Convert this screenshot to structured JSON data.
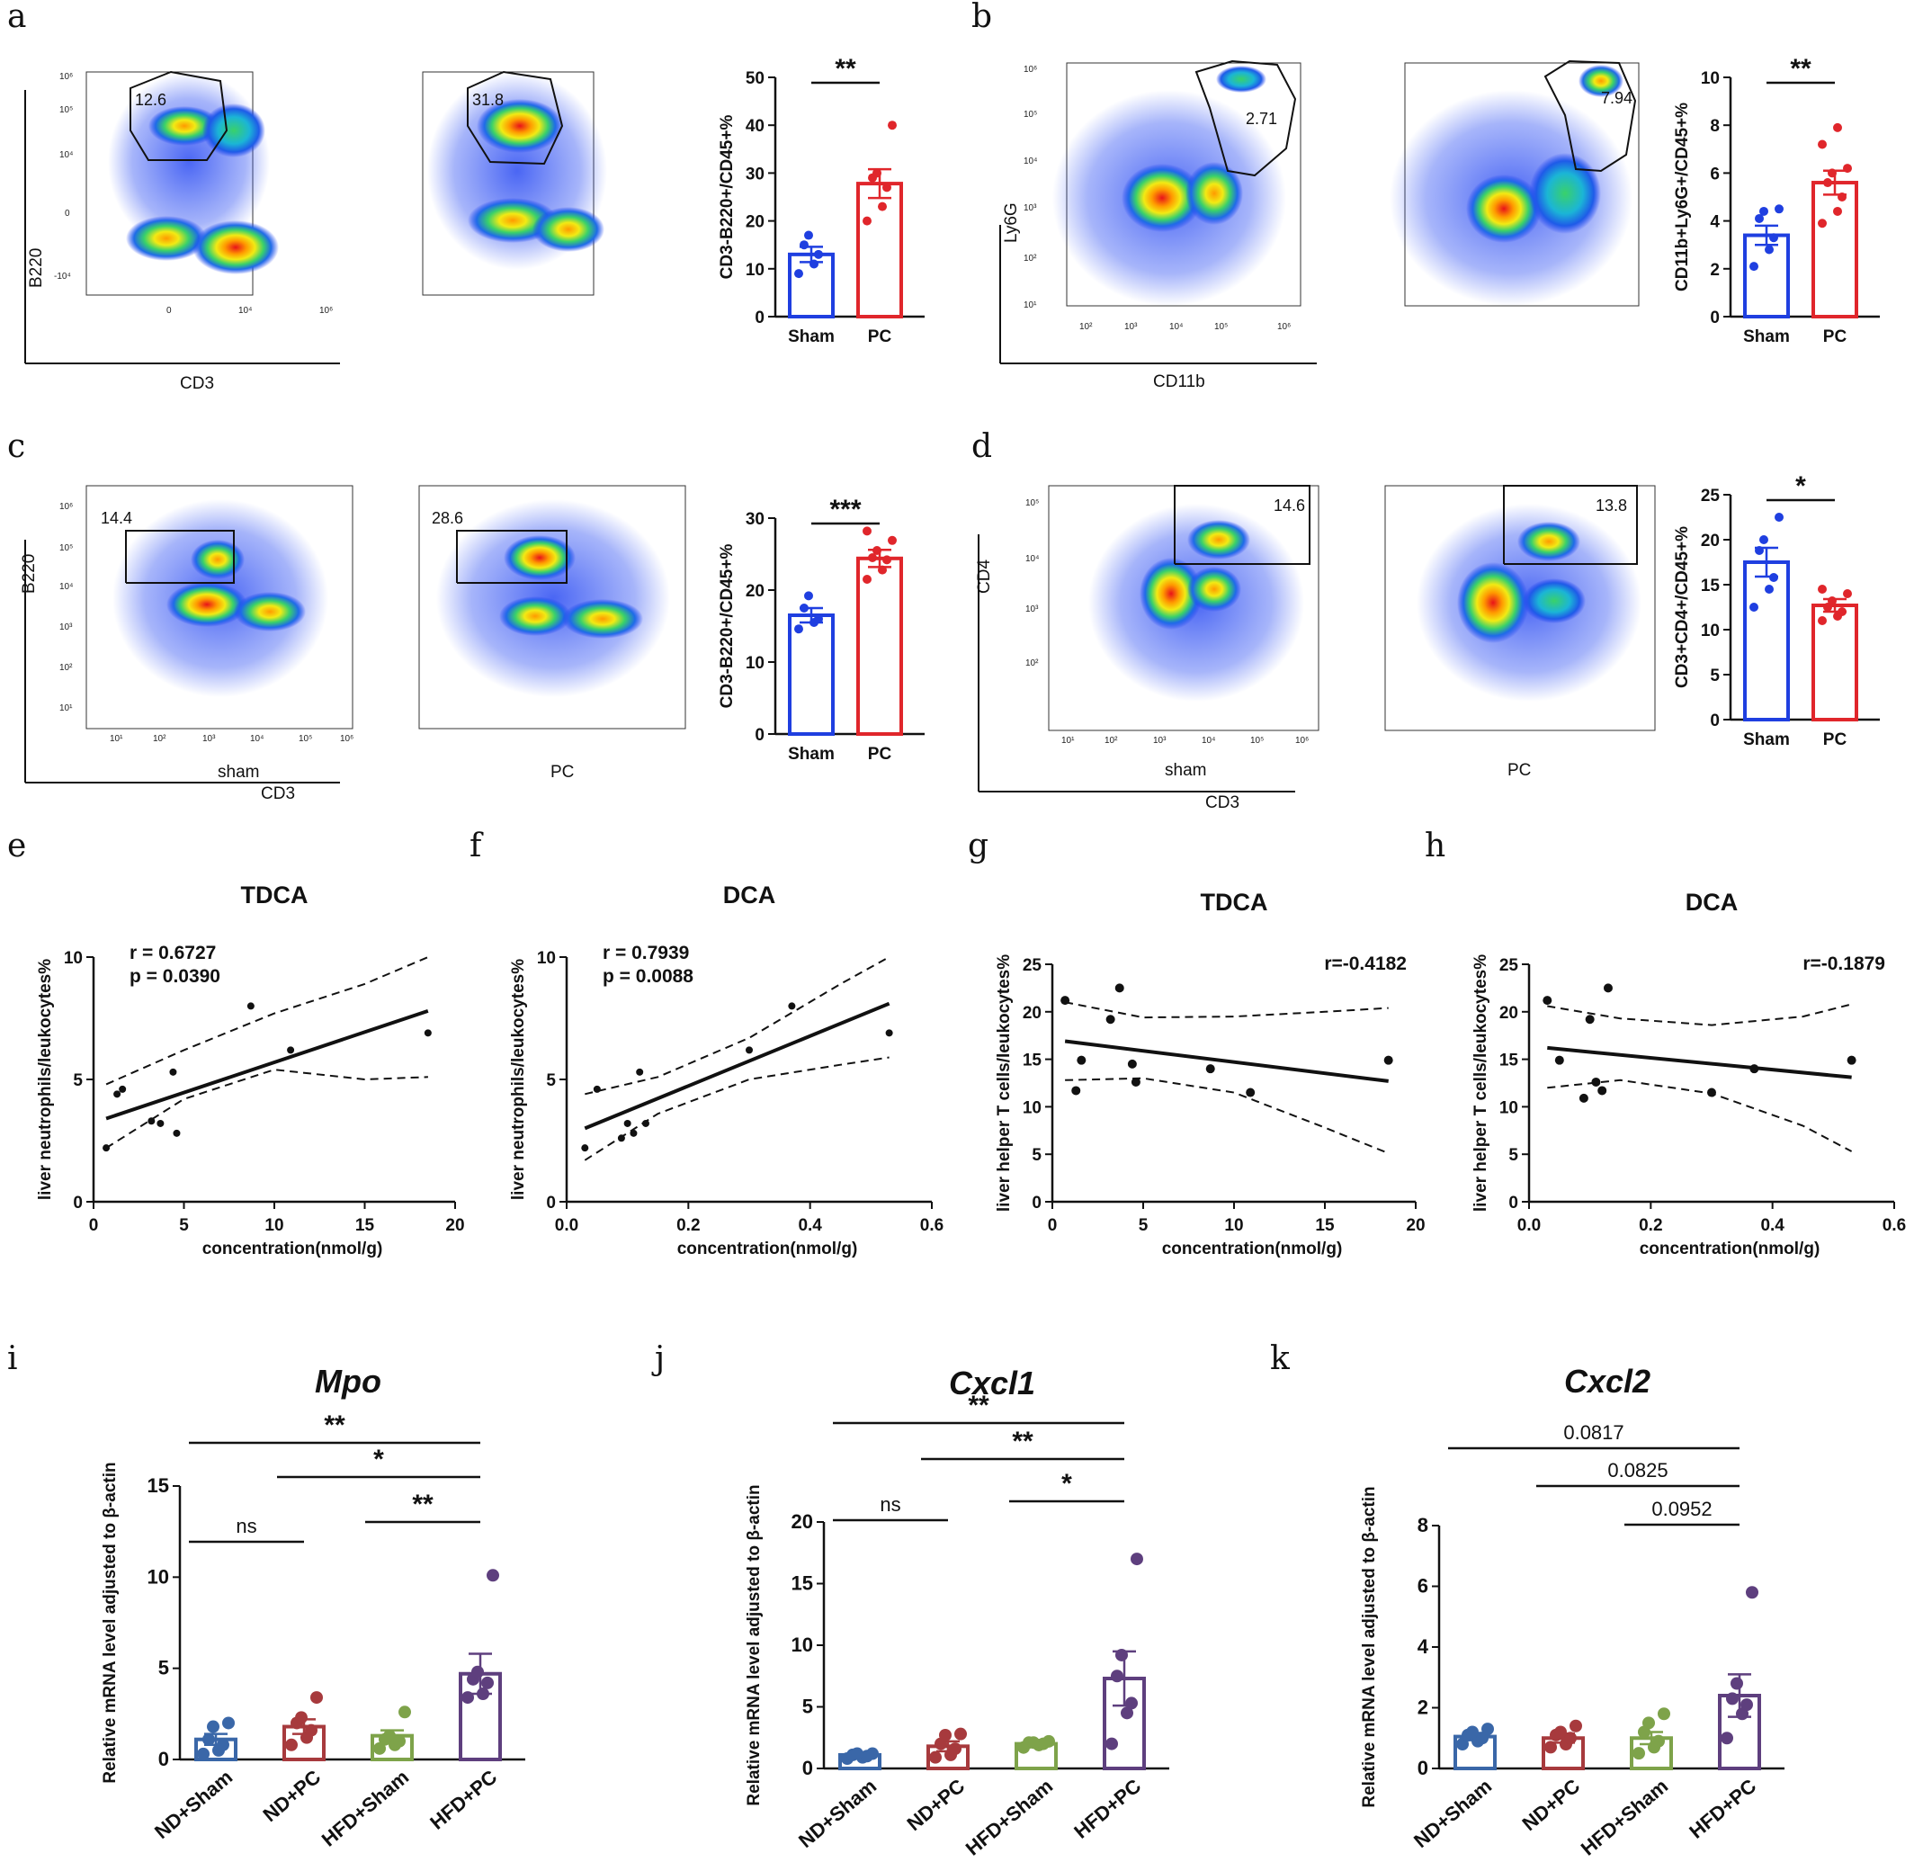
{
  "panel_labels": [
    "a",
    "b",
    "c",
    "d",
    "e",
    "f",
    "g",
    "h",
    "i",
    "j",
    "k"
  ],
  "flow_panels": {
    "a": {
      "y_axis": "B220",
      "x_axis": "CD3",
      "gates": [
        "12.6",
        "31.8"
      ],
      "x_ticks": [
        "0",
        "10⁴",
        "10⁶"
      ],
      "y_ticks": [
        "10⁶",
        "10⁵",
        "10⁴",
        "0",
        "-10⁴"
      ]
    },
    "b": {
      "y_axis": "Ly6G",
      "x_axis": "CD11b",
      "gates": [
        "2.71",
        "7.94"
      ],
      "x_ticks": [
        "10²",
        "10³",
        "10⁴",
        "10⁵",
        "10⁶"
      ],
      "y_ticks": [
        "10⁶",
        "10⁵",
        "10⁴",
        "10³",
        "10²",
        "10¹"
      ]
    },
    "c": {
      "y_axis": "B220",
      "x_axis": "CD3",
      "gates": [
        "14.4",
        "28.6"
      ],
      "sub_labels": [
        "sham",
        "PC"
      ],
      "x_ticks": [
        "10¹",
        "10²",
        "10³",
        "10⁴",
        "10⁵",
        "10⁶"
      ],
      "y_ticks": [
        "10⁶",
        "10⁵",
        "10⁴",
        "10³",
        "10²",
        "10¹"
      ]
    },
    "d": {
      "y_axis": "CD4",
      "x_axis": "CD3",
      "gates": [
        "14.6",
        "13.8"
      ],
      "sub_labels": [
        "sham",
        "PC"
      ],
      "x_ticks": [
        "10¹",
        "10²",
        "10³",
        "10⁴",
        "10⁵",
        "10⁶"
      ],
      "y_ticks": [
        "10⁵",
        "10⁴",
        "10³",
        "10²"
      ]
    }
  },
  "chart_data": [
    {
      "panel": "a",
      "type": "bar",
      "ylabel": "CD3-B220+/CD45+%",
      "categories": [
        "Sham",
        "PC"
      ],
      "values": [
        13,
        27.8
      ],
      "sem": [
        1.6,
        3.0
      ],
      "ylim": [
        0,
        50
      ],
      "yticks": [
        0,
        10,
        20,
        30,
        40,
        50
      ],
      "colors": [
        "#1f3fe0",
        "#e0262b"
      ],
      "points": [
        [
          9,
          11,
          13,
          15,
          17
        ],
        [
          20,
          23,
          27,
          29,
          30,
          40
        ]
      ],
      "sig": "**"
    },
    {
      "panel": "b",
      "type": "bar",
      "ylabel": "CD11b+Ly6G+/CD45+%",
      "categories": [
        "Sham",
        "PC"
      ],
      "values": [
        3.4,
        5.6
      ],
      "sem": [
        0.4,
        0.5
      ],
      "ylim": [
        0,
        10
      ],
      "yticks": [
        0,
        2,
        4,
        6,
        8,
        10
      ],
      "colors": [
        "#1f3fe0",
        "#e0262b"
      ],
      "points": [
        [
          2.1,
          2.8,
          3.3,
          4.1,
          4.4,
          4.5
        ],
        [
          3.9,
          4.4,
          5.0,
          5.6,
          6.0,
          6.2,
          7.2,
          7.9
        ]
      ],
      "sig": "**"
    },
    {
      "panel": "c",
      "type": "bar",
      "ylabel": "CD3-B220+/CD45+%",
      "categories": [
        "Sham",
        "PC"
      ],
      "values": [
        16.5,
        24.4
      ],
      "sem": [
        1.0,
        1.2
      ],
      "ylim": [
        0,
        30
      ],
      "yticks": [
        0,
        10,
        20,
        30
      ],
      "colors": [
        "#1f3fe0",
        "#e0262b"
      ],
      "points": [
        [
          14.6,
          15.5,
          16.0,
          17.5,
          19.2
        ],
        [
          21.5,
          22.8,
          24.2,
          24.5,
          25.5,
          26.9,
          28.2
        ]
      ],
      "sig": "***"
    },
    {
      "panel": "d",
      "type": "bar",
      "ylabel": "CD3+CD4+/CD45+%",
      "categories": [
        "Sham",
        "PC"
      ],
      "values": [
        17.5,
        12.7
      ],
      "sem": [
        1.6,
        0.7
      ],
      "ylim": [
        0,
        25
      ],
      "yticks": [
        0,
        5,
        10,
        15,
        20,
        25
      ],
      "colors": [
        "#1f3fe0",
        "#e0262b"
      ],
      "points": [
        [
          12.5,
          14.5,
          15.8,
          18.8,
          20.0,
          22.5
        ],
        [
          11.0,
          11.5,
          12.0,
          12.5,
          13.2,
          14.0,
          14.5
        ]
      ],
      "sig": "*"
    },
    {
      "panel": "e",
      "type": "scatter",
      "title": "TDCA",
      "xlabel": "concentration(nmol/g)",
      "ylabel": "liver neutrophils/leukocytes%",
      "xlim": [
        0,
        20
      ],
      "ylim": [
        0,
        10
      ],
      "xticks": [
        0,
        5,
        10,
        15,
        20
      ],
      "yticks": [
        0,
        5,
        10
      ],
      "x": [
        0.7,
        1.3,
        1.6,
        3.2,
        3.7,
        4.4,
        4.6,
        8.7,
        10.9,
        18.5
      ],
      "y": [
        2.2,
        4.4,
        4.6,
        3.3,
        3.2,
        5.3,
        2.8,
        8.0,
        6.2,
        6.9
      ],
      "fit": [
        [
          0.7,
          3.4
        ],
        [
          18.5,
          7.8
        ]
      ],
      "ci_upper": [
        [
          0.7,
          4.8
        ],
        [
          5,
          6.2
        ],
        [
          10,
          7.7
        ],
        [
          15,
          8.9
        ],
        [
          18.5,
          10.0
        ]
      ],
      "ci_lower": [
        [
          0.7,
          2.2
        ],
        [
          5,
          4.2
        ],
        [
          10,
          5.4
        ],
        [
          15,
          5.0
        ],
        [
          18.5,
          5.1
        ]
      ],
      "stats": [
        "r = 0.6727",
        "p = 0.0390"
      ]
    },
    {
      "panel": "f",
      "type": "scatter",
      "title": "DCA",
      "xlabel": "concentration(nmol/g)",
      "ylabel": "liver neutrophils/leukocytes%",
      "xlim": [
        0,
        0.6
      ],
      "ylim": [
        0,
        10
      ],
      "xticks": [
        "0.0",
        "0.2",
        "0.4",
        "0.6"
      ],
      "yticks": [
        0,
        5,
        10
      ],
      "x": [
        0.03,
        0.05,
        0.09,
        0.1,
        0.11,
        0.12,
        0.13,
        0.3,
        0.37,
        0.53
      ],
      "y": [
        2.2,
        4.6,
        2.6,
        3.2,
        2.8,
        5.3,
        3.2,
        6.2,
        8.0,
        6.9
      ],
      "fit": [
        [
          0.03,
          3.0
        ],
        [
          0.53,
          8.1
        ]
      ],
      "ci_upper": [
        [
          0.03,
          4.4
        ],
        [
          0.15,
          5.1
        ],
        [
          0.3,
          6.7
        ],
        [
          0.45,
          8.9
        ],
        [
          0.53,
          10.0
        ]
      ],
      "ci_lower": [
        [
          0.03,
          1.7
        ],
        [
          0.15,
          3.6
        ],
        [
          0.3,
          5.0
        ],
        [
          0.45,
          5.6
        ],
        [
          0.53,
          5.9
        ]
      ],
      "stats": [
        "r = 0.7939",
        "p = 0.0088"
      ]
    },
    {
      "panel": "g",
      "type": "scatter",
      "title": "TDCA",
      "xlabel": "concentration(nmol/g)",
      "ylabel": "liver helper T cells/leukocytes%",
      "xlim": [
        0,
        20
      ],
      "ylim": [
        0,
        25
      ],
      "xticks": [
        0,
        5,
        10,
        15,
        20
      ],
      "yticks": [
        0,
        5,
        10,
        15,
        20,
        25
      ],
      "x": [
        0.7,
        1.3,
        1.6,
        3.2,
        3.7,
        4.4,
        4.6,
        8.7,
        10.9,
        18.5
      ],
      "y": [
        21.2,
        11.7,
        14.9,
        19.2,
        22.5,
        14.5,
        12.6,
        14.0,
        11.5,
        14.9
      ],
      "fit": [
        [
          0.7,
          16.9
        ],
        [
          18.5,
          12.7
        ]
      ],
      "ci_upper": [
        [
          0.7,
          21.0
        ],
        [
          5,
          19.4
        ],
        [
          10,
          19.5
        ],
        [
          15,
          20.0
        ],
        [
          18.5,
          20.4
        ]
      ],
      "ci_lower": [
        [
          0.7,
          12.8
        ],
        [
          5,
          13.0
        ],
        [
          10,
          11.5
        ],
        [
          15,
          7.8
        ],
        [
          18.5,
          5.1
        ]
      ],
      "stats": [
        "r=-0.4182"
      ]
    },
    {
      "panel": "h",
      "type": "scatter",
      "title": "DCA",
      "xlabel": "concentration(nmol/g)",
      "ylabel": "liver helper T cells/leukocytes%",
      "xlim": [
        0,
        0.6
      ],
      "ylim": [
        0,
        25
      ],
      "xticks": [
        "0.0",
        "0.2",
        "0.4",
        "0.6"
      ],
      "yticks": [
        0,
        5,
        10,
        15,
        20,
        25
      ],
      "x": [
        0.03,
        0.05,
        0.09,
        0.1,
        0.11,
        0.12,
        0.13,
        0.3,
        0.37,
        0.53
      ],
      "y": [
        21.2,
        14.9,
        10.9,
        19.2,
        12.6,
        11.7,
        22.5,
        11.5,
        14.0,
        14.9
      ],
      "fit": [
        [
          0.03,
          16.2
        ],
        [
          0.53,
          13.1
        ]
      ],
      "ci_upper": [
        [
          0.03,
          20.6
        ],
        [
          0.15,
          19.3
        ],
        [
          0.3,
          18.6
        ],
        [
          0.45,
          19.5
        ],
        [
          0.53,
          20.8
        ]
      ],
      "ci_lower": [
        [
          0.03,
          12.0
        ],
        [
          0.15,
          12.8
        ],
        [
          0.3,
          11.4
        ],
        [
          0.45,
          8.0
        ],
        [
          0.53,
          5.3
        ]
      ],
      "stats": [
        "r=-0.1879"
      ]
    },
    {
      "panel": "i",
      "type": "bar",
      "title": "Mpo",
      "ylabel": "Relative mRNA level adjusted to β-actin",
      "categories": [
        "ND+Sham",
        "ND+PC",
        "HFD+Sham",
        "HFD+PC"
      ],
      "values": [
        1.1,
        1.8,
        1.3,
        4.7
      ],
      "sem": [
        0.3,
        0.4,
        0.3,
        1.1
      ],
      "ylim": [
        0,
        15
      ],
      "yticks": [
        0,
        5,
        10,
        15
      ],
      "colors": [
        "#3a67a8",
        "#a73a3d",
        "#7ea34a",
        "#5e3f7e"
      ],
      "points": [
        [
          0.3,
          0.5,
          0.8,
          1.1,
          1.8,
          2.0
        ],
        [
          0.8,
          1.2,
          1.6,
          2.0,
          2.3,
          3.4
        ],
        [
          0.6,
          0.8,
          1.0,
          1.1,
          1.3,
          2.6
        ],
        [
          3.4,
          3.6,
          4.2,
          4.4,
          4.8,
          10.1
        ]
      ],
      "sig": [
        {
          "from": 0,
          "to": 3,
          "text": "**"
        },
        {
          "from": 1,
          "to": 3,
          "text": "*"
        },
        {
          "from": 2,
          "to": 3,
          "text": "**"
        },
        {
          "from": 0,
          "to": 1,
          "text": "ns"
        }
      ]
    },
    {
      "panel": "j",
      "type": "bar",
      "title": "Cxcl1",
      "ylabel": "Relative mRNA level adjusted to β-actin",
      "categories": [
        "ND+Sham",
        "ND+PC",
        "HFD+Sham",
        "HFD+PC"
      ],
      "values": [
        1.1,
        1.8,
        2.0,
        7.3
      ],
      "sem": [
        0.1,
        0.4,
        0.1,
        2.2
      ],
      "ylim": [
        0,
        20
      ],
      "yticks": [
        0,
        5,
        10,
        15,
        20
      ],
      "colors": [
        "#3a67a8",
        "#a73a3d",
        "#7ea34a",
        "#5e3f7e"
      ],
      "points": [
        [
          0.8,
          0.9,
          1.0,
          1.1,
          1.2,
          1.2
        ],
        [
          0.9,
          1.1,
          1.6,
          2.0,
          2.7,
          2.8
        ],
        [
          1.7,
          1.9,
          2.0,
          2.1,
          2.1,
          2.2
        ],
        [
          2.0,
          4.5,
          5.3,
          7.5,
          9.2,
          17.0
        ]
      ],
      "sig": [
        {
          "from": 0,
          "to": 3,
          "text": "**"
        },
        {
          "from": 1,
          "to": 3,
          "text": "**"
        },
        {
          "from": 2,
          "to": 3,
          "text": "*"
        },
        {
          "from": 0,
          "to": 1,
          "text": "ns"
        }
      ]
    },
    {
      "panel": "k",
      "type": "bar",
      "title": "Cxcl2",
      "ylabel": "Relative mRNA level adjusted to β-actin",
      "categories": [
        "ND+Sham",
        "ND+PC",
        "HFD+Sham",
        "HFD+PC"
      ],
      "values": [
        1.05,
        1.0,
        1.0,
        2.4
      ],
      "sem": [
        0.12,
        0.15,
        0.2,
        0.7
      ],
      "ylim": [
        0,
        8
      ],
      "yticks": [
        0,
        2,
        4,
        6,
        8
      ],
      "colors": [
        "#3a67a8",
        "#a73a3d",
        "#7ea34a",
        "#5e3f7e"
      ],
      "points": [
        [
          0.8,
          0.9,
          1.0,
          1.1,
          1.2,
          1.3
        ],
        [
          0.7,
          0.8,
          1.0,
          1.1,
          1.2,
          1.4
        ],
        [
          0.5,
          0.7,
          0.9,
          1.2,
          1.5,
          1.8
        ],
        [
          1.0,
          1.8,
          2.1,
          2.3,
          2.8,
          5.8
        ]
      ],
      "sig": [
        {
          "from": 0,
          "to": 3,
          "text": "0.0817"
        },
        {
          "from": 1,
          "to": 3,
          "text": "0.0825"
        },
        {
          "from": 2,
          "to": 3,
          "text": "0.0952"
        }
      ]
    }
  ]
}
